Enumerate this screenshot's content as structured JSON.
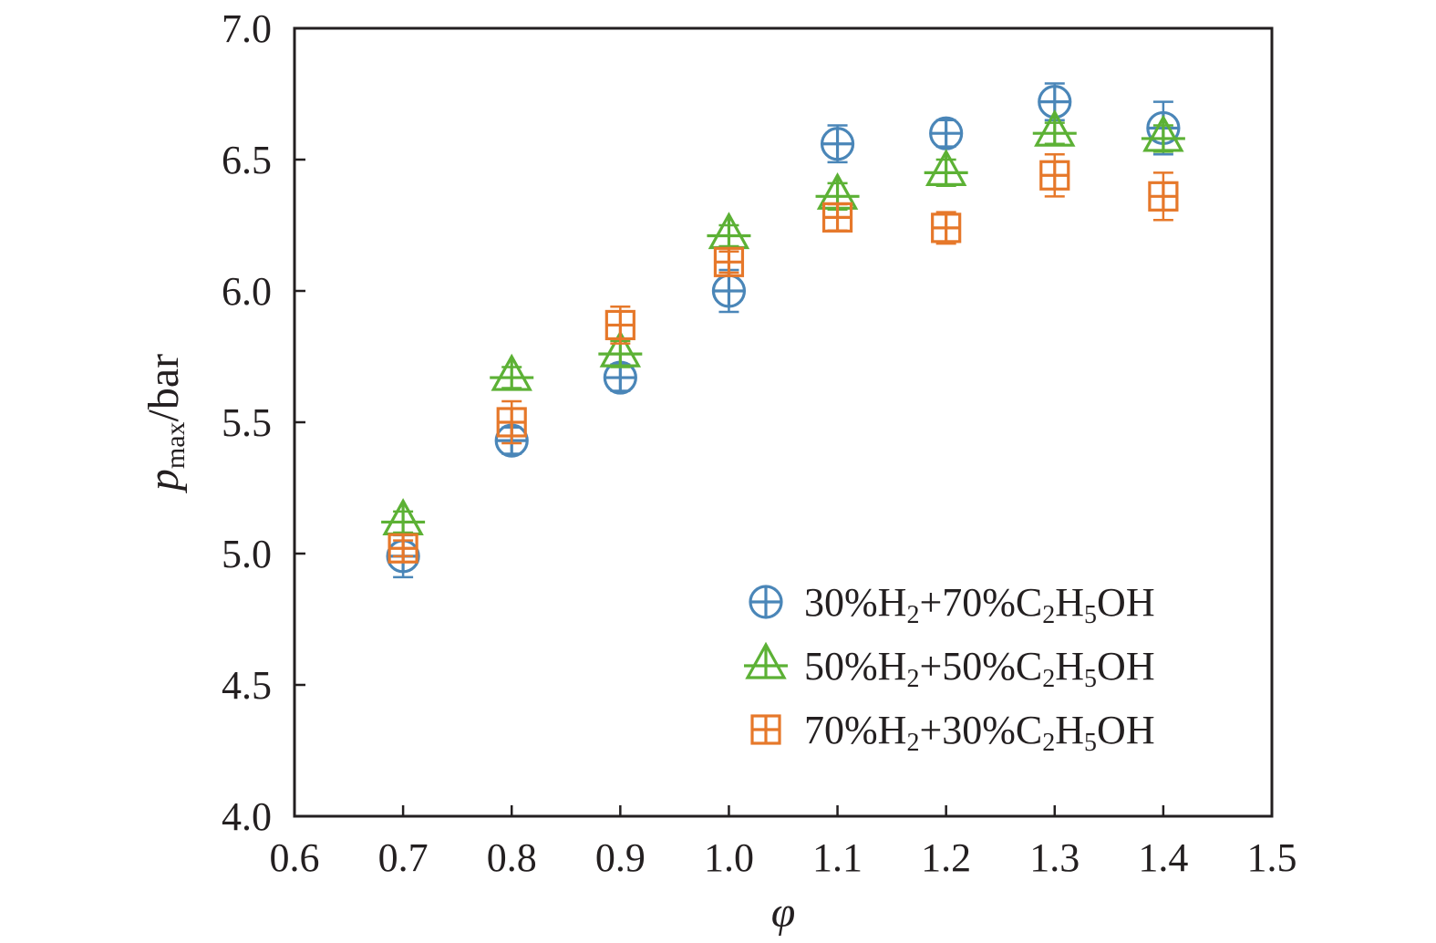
{
  "chart_data": {
    "type": "scatter",
    "xlim": [
      0.6,
      1.5
    ],
    "ylim": [
      4.0,
      7.0
    ],
    "x_ticks": [
      "0.6",
      "0.7",
      "0.8",
      "0.9",
      "1.0",
      "1.1",
      "1.2",
      "1.3",
      "1.4",
      "1.5"
    ],
    "y_ticks": [
      "4.0",
      "4.5",
      "5.0",
      "5.5",
      "6.0",
      "6.5",
      "7.0"
    ],
    "xlabel": "φ",
    "ylabel": {
      "main": "p",
      "sub": "max",
      "unit": "/bar"
    },
    "grid": false,
    "legend_position": "bottom-right",
    "series": [
      {
        "name": {
          "a": "30%H",
          "b": "2",
          "c": "+70%C",
          "d": "2",
          "e": "H",
          "f": "5",
          "g": "OH"
        },
        "marker": "circle-plus",
        "color": "#4a86b8",
        "x": [
          0.7,
          0.8,
          0.9,
          1.0,
          1.1,
          1.2,
          1.3,
          1.4
        ],
        "y": [
          4.99,
          5.43,
          5.67,
          6.0,
          6.56,
          6.6,
          6.72,
          6.62
        ],
        "err": [
          0.08,
          0.05,
          0.05,
          0.08,
          0.07,
          0.05,
          0.07,
          0.1
        ]
      },
      {
        "name": {
          "a": "50%H",
          "b": "2",
          "c": "+50%C",
          "d": "2",
          "e": "H",
          "f": "5",
          "g": "OH"
        },
        "marker": "triangle-cross",
        "color": "#5cb135",
        "x": [
          0.7,
          0.8,
          0.9,
          1.0,
          1.1,
          1.2,
          1.3,
          1.4
        ],
        "y": [
          5.12,
          5.67,
          5.76,
          6.21,
          6.36,
          6.45,
          6.6,
          6.58
        ],
        "err": [
          0.04,
          0.04,
          0.05,
          0.04,
          0.05,
          0.05,
          0.04,
          0.05
        ]
      },
      {
        "name": {
          "a": "70%H",
          "b": "2",
          "c": "+30%C",
          "d": "2",
          "e": "H",
          "f": "5",
          "g": "OH"
        },
        "marker": "square-plus",
        "color": "#e6782a",
        "x": [
          0.7,
          0.8,
          0.9,
          1.0,
          1.1,
          1.2,
          1.3,
          1.4
        ],
        "y": [
          5.02,
          5.5,
          5.87,
          6.11,
          6.28,
          6.24,
          6.44,
          6.36
        ],
        "err": [
          0.03,
          0.08,
          0.07,
          0.04,
          0.05,
          0.06,
          0.08,
          0.09
        ]
      }
    ]
  }
}
